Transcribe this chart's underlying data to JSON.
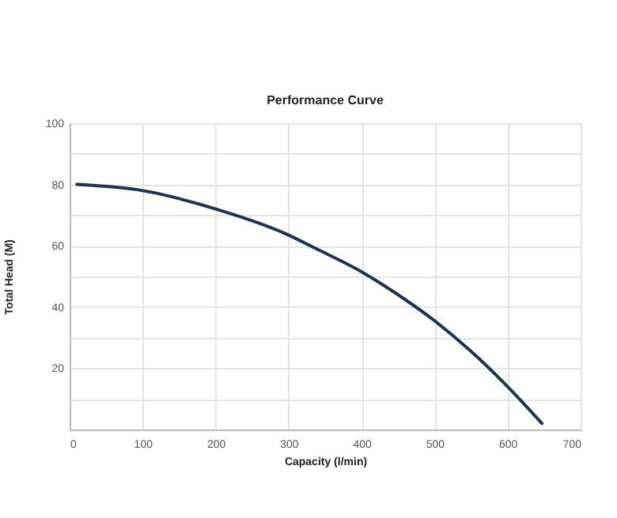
{
  "chart_data": {
    "type": "line",
    "title": "Performance Curve",
    "xlabel": "Capacity (l/min)",
    "ylabel": "Total Head (M)",
    "x": [
      10,
      100,
      200,
      295,
      338,
      400,
      450,
      500,
      550,
      600,
      647
    ],
    "series": [
      {
        "color": "#1f3350",
        "values": [
          80,
          78,
          72,
          64,
          59,
          51.5,
          44,
          35.5,
          25.5,
          14,
          2
        ]
      }
    ],
    "xlim": [
      0,
      700
    ],
    "xticks": [
      0,
      100,
      200,
      300,
      400,
      500,
      600,
      700
    ],
    "ylim": [
      0,
      100
    ],
    "yticks": [
      {
        "value": 10,
        "label": null
      },
      20,
      {
        "value": 30,
        "label": null
      },
      40,
      {
        "value": 50,
        "label": null
      },
      60,
      {
        "value": 70,
        "label": null
      },
      80,
      {
        "value": 90,
        "label": null
      },
      100
    ],
    "grid": true,
    "marker": "none",
    "line_style": "solid"
  }
}
